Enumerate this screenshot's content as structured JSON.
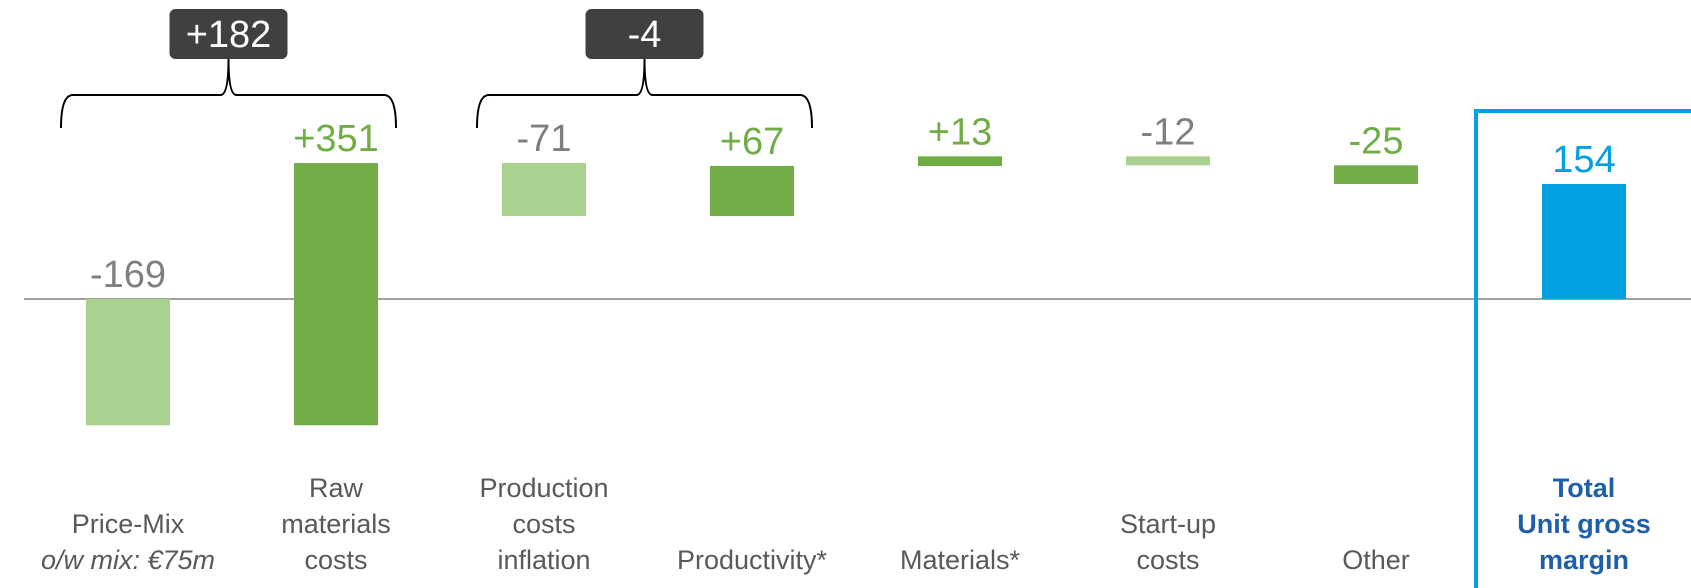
{
  "colors": {
    "light_green": "#A9D08E",
    "dark_green": "#70AD47",
    "blue": "#00A0E1",
    "total_label": "#1F5FA8",
    "neg_label": "#7F7F7F",
    "pos_label": "#70AD47",
    "bracket_box": "#404040",
    "axis_line": "#808080"
  },
  "chart_data": {
    "type": "bar",
    "subtype": "waterfall",
    "title": "",
    "xlabel": "",
    "ylabel": "",
    "categories": [
      {
        "lines": [
          "Price-Mix",
          "o/w mix: €75m"
        ],
        "italic_line": 1
      },
      {
        "lines": [
          "Raw",
          "materials",
          "costs"
        ]
      },
      {
        "lines": [
          "Production",
          "costs",
          "inflation"
        ]
      },
      {
        "lines": [
          "Productivity*"
        ]
      },
      {
        "lines": [
          "Materials*"
        ]
      },
      {
        "lines": [
          "Start-up",
          "costs"
        ]
      },
      {
        "lines": [
          "Other"
        ]
      },
      {
        "lines": [
          "Total",
          "Unit gross",
          "margin"
        ],
        "total": true
      }
    ],
    "values": [
      -169,
      351,
      -71,
      67,
      13,
      -12,
      -25,
      154
    ],
    "value_labels": [
      "-169",
      "+351",
      "-71",
      "+67",
      "+13",
      "-12",
      "-25",
      "154"
    ],
    "bar_colors": [
      "light_green",
      "dark_green",
      "light_green",
      "dark_green",
      "dark_green",
      "light_green",
      "dark_green",
      "blue"
    ],
    "label_colors": [
      "neg_label",
      "pos_label",
      "neg_label",
      "pos_label",
      "pos_label",
      "neg_label",
      "pos_label",
      "blue"
    ],
    "brackets": [
      {
        "from": 0,
        "to": 1,
        "label": "+182"
      },
      {
        "from": 2,
        "to": 3,
        "label": "-4"
      }
    ],
    "highlight_total": true
  }
}
